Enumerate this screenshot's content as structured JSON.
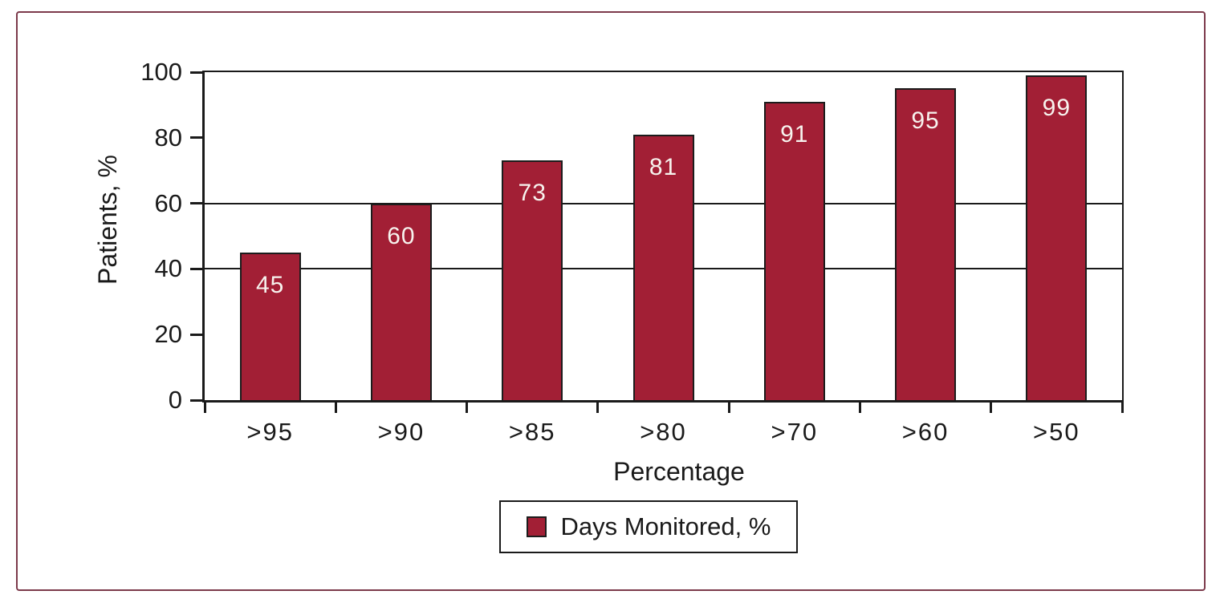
{
  "chart_data": {
    "type": "bar",
    "categories": [
      ">95",
      ">90",
      ">85",
      ">80",
      ">70",
      ">60",
      ">50"
    ],
    "series": [
      {
        "name": "Days Monitored, %",
        "values": [
          45,
          60,
          73,
          81,
          91,
          95,
          99
        ]
      }
    ],
    "bar_labels": [
      "45",
      "60",
      "73",
      "81",
      "91",
      "95",
      "99"
    ],
    "title": "",
    "xlabel": "Percentage",
    "ylabel": "Patients, %",
    "ylim": [
      0,
      100
    ],
    "yticks": [
      0,
      20,
      40,
      60,
      80,
      100
    ],
    "gridlines_y": [
      40,
      60
    ],
    "grid": "partial-horizontal",
    "legend_position": "bottom-center",
    "legend_label": "Days Monitored, %",
    "colors": {
      "bar_fill": "#a21f35",
      "bar_border": "#1c1c1c",
      "bar_label_text": "#f7f3ee",
      "axis": "#1a1a1a",
      "figure_border": "#7c3a4b",
      "background": "#ffffff"
    }
  }
}
